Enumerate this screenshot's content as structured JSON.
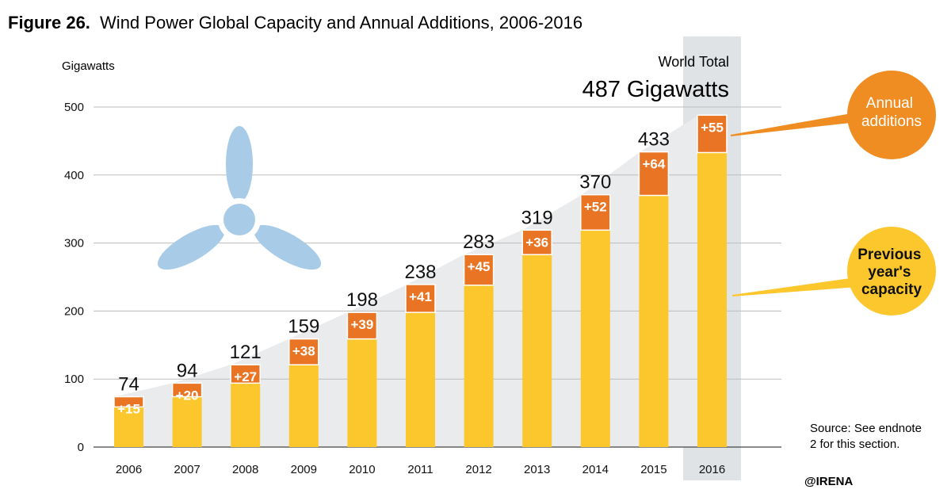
{
  "title": {
    "prefix": "Figure 26.",
    "text": "Wind Power Global Capacity and Annual Additions, 2006-2016"
  },
  "ylabel": "Gigawatts",
  "world_total": {
    "label": "World Total",
    "value_text": "487 Gigawatts"
  },
  "callouts": {
    "additions": [
      "Annual",
      "additions"
    ],
    "previous": [
      "Previous",
      "year's",
      "capacity"
    ]
  },
  "source": [
    "Source: See endnote",
    "2 for this section."
  ],
  "credit": "@IRENA",
  "colors": {
    "previous": "#fcc72c",
    "additions": "#e97524",
    "highlight": "#dfe3e6",
    "area": "#e9ebed",
    "callout_orange": "#ef8c22",
    "callout_yellow": "#fcc72c",
    "turbine": "#a8cce8"
  },
  "icon": "wind-turbine-icon",
  "chart_data": {
    "type": "bar",
    "stacked": true,
    "categories": [
      "2006",
      "2007",
      "2008",
      "2009",
      "2010",
      "2011",
      "2012",
      "2013",
      "2014",
      "2015",
      "2016"
    ],
    "series": [
      {
        "name": "Previous year's capacity",
        "values": [
          59,
          74,
          94,
          121,
          159,
          198,
          238,
          283,
          319,
          370,
          433
        ]
      },
      {
        "name": "Annual additions",
        "values": [
          15,
          20,
          27,
          38,
          39,
          41,
          45,
          36,
          52,
          64,
          55
        ]
      }
    ],
    "totals": [
      74,
      94,
      121,
      159,
      198,
      238,
      283,
      319,
      370,
      433,
      487
    ],
    "addition_labels": [
      "+15",
      "+20",
      "+27",
      "+38",
      "+39",
      "+41",
      "+45",
      "+36",
      "+52",
      "+64",
      "+55"
    ],
    "yticks": [
      0,
      100,
      200,
      300,
      400,
      500
    ],
    "ylim": [
      0,
      500
    ],
    "highlight_category": "2016",
    "grid": true
  }
}
